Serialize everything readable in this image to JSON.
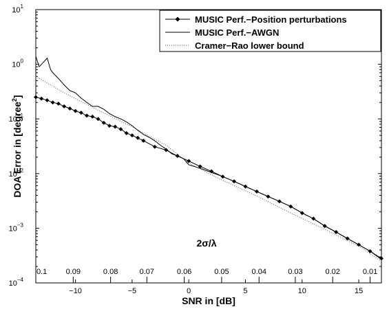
{
  "chart_data": {
    "type": "line",
    "xlabel": "SNR in [dB]",
    "ylabel": "DOA Error in [degree",
    "ylabel_sup": "2",
    "ylabel_close": "]",
    "x_range": [
      -13.5,
      17
    ],
    "y_scale": "log",
    "y_range": [
      0.0001,
      10
    ],
    "x_ticks": [
      -10,
      -5,
      0,
      5,
      10,
      15
    ],
    "x_tick_labels": [
      "−10",
      "−5",
      "0",
      "5",
      "10",
      "15"
    ],
    "y_ticks": [
      {
        "value": 0.0001,
        "base": "10",
        "exp": "−4"
      },
      {
        "value": 0.001,
        "base": "10",
        "exp": "−3"
      },
      {
        "value": 0.01,
        "base": "10",
        "exp": "−2"
      },
      {
        "value": 0.1,
        "base": "10",
        "exp": "−1"
      },
      {
        "value": 1,
        "base": "10",
        "exp": "0"
      },
      {
        "value": 10,
        "base": "10",
        "exp": "1"
      }
    ],
    "top_axis_ticks": [
      {
        "x": -13.5,
        "label": "0.1"
      },
      {
        "x": -10.2,
        "label": "0.09"
      },
      {
        "x": -6.9,
        "label": "0.08"
      },
      {
        "x": -3.7,
        "label": "0.07"
      },
      {
        "x": -0.4,
        "label": "0.06"
      },
      {
        "x": 2.9,
        "label": "0.05"
      },
      {
        "x": 6.2,
        "label": "0.04"
      },
      {
        "x": 9.4,
        "label": "0.03"
      },
      {
        "x": 12.7,
        "label": "0.02"
      },
      {
        "x": 16.0,
        "label": "0.01"
      }
    ],
    "annotation": "2σ/λ",
    "grid": false,
    "legend_position": "top-right",
    "series": [
      {
        "name": "MUSIC Perf.−Position perturbations",
        "style": "solid-diamond",
        "color": "#000000",
        "x": [
          -13.5,
          -13.0,
          -12.5,
          -12.0,
          -11.5,
          -11.0,
          -10.5,
          -10.0,
          -9.5,
          -9.0,
          -8.5,
          -8.0,
          -7.5,
          -7.0,
          -6.5,
          -6.0,
          -5.5,
          -5.0,
          -4.5,
          -4.0,
          -3.0,
          -2.0,
          -1.0,
          0.0,
          1.0,
          2.0,
          3.0,
          4.0,
          5.0,
          6.0,
          7.0,
          8.0,
          9.0,
          10.0,
          11.0,
          12.0,
          13.0,
          14.0,
          15.0,
          16.0,
          17.0
        ],
        "y": [
          0.25,
          0.235,
          0.22,
          0.2,
          0.19,
          0.17,
          0.155,
          0.14,
          0.13,
          0.115,
          0.11,
          0.1,
          0.085,
          0.075,
          0.072,
          0.065,
          0.055,
          0.05,
          0.045,
          0.04,
          0.031,
          0.027,
          0.021,
          0.017,
          0.0135,
          0.011,
          0.0088,
          0.0072,
          0.0058,
          0.0047,
          0.0038,
          0.0031,
          0.0025,
          0.0019,
          0.0015,
          0.0011,
          0.00085,
          0.00065,
          0.0005,
          0.00038,
          0.00028
        ]
      },
      {
        "name": "MUSIC Perf.−AWGN",
        "style": "solid",
        "color": "#000000",
        "x": [
          -13.5,
          -13.2,
          -12.8,
          -12.5,
          -12.2,
          -12.0,
          -11.5,
          -11.0,
          -10.5,
          -10.0,
          -9.5,
          -9.0,
          -8.5,
          -8.0,
          -7.5,
          -7.0,
          -6.5,
          -6.0,
          -5.5,
          -5.0,
          -4.5,
          -4.0,
          -3.5,
          -3.0,
          -2.5,
          -2.0,
          -1.5,
          -1.0,
          -0.5,
          0.0,
          1.0,
          2.0,
          3.0,
          4.0,
          5.0,
          6.0,
          7.0,
          8.0,
          9.0,
          10.0,
          11.0,
          12.0,
          13.0,
          14.0,
          15.0,
          16.0,
          17.0
        ],
        "y": [
          1.4,
          0.9,
          1.1,
          1.3,
          0.8,
          0.7,
          0.55,
          0.42,
          0.33,
          0.3,
          0.24,
          0.2,
          0.17,
          0.17,
          0.15,
          0.125,
          0.11,
          0.1,
          0.088,
          0.075,
          0.062,
          0.052,
          0.046,
          0.04,
          0.033,
          0.028,
          0.023,
          0.021,
          0.019,
          0.0145,
          0.0125,
          0.0105,
          0.0088,
          0.0072,
          0.0058,
          0.0047,
          0.0038,
          0.0031,
          0.0025,
          0.0019,
          0.0015,
          0.0011,
          0.00085,
          0.00065,
          0.0005,
          0.00038,
          0.00027
        ]
      },
      {
        "name": "Cramer−Rao lower bound",
        "style": "dotted",
        "color": "#555555",
        "x": [
          -13.5,
          -11.0,
          -8.0,
          -5.0,
          -2.0,
          0.0,
          3.0,
          6.0,
          9.0,
          12.0,
          15.0,
          17.0
        ],
        "y": [
          0.6,
          0.3,
          0.145,
          0.072,
          0.033,
          0.0155,
          0.0075,
          0.0039,
          0.0019,
          0.00096,
          0.00047,
          0.00025
        ]
      }
    ]
  }
}
